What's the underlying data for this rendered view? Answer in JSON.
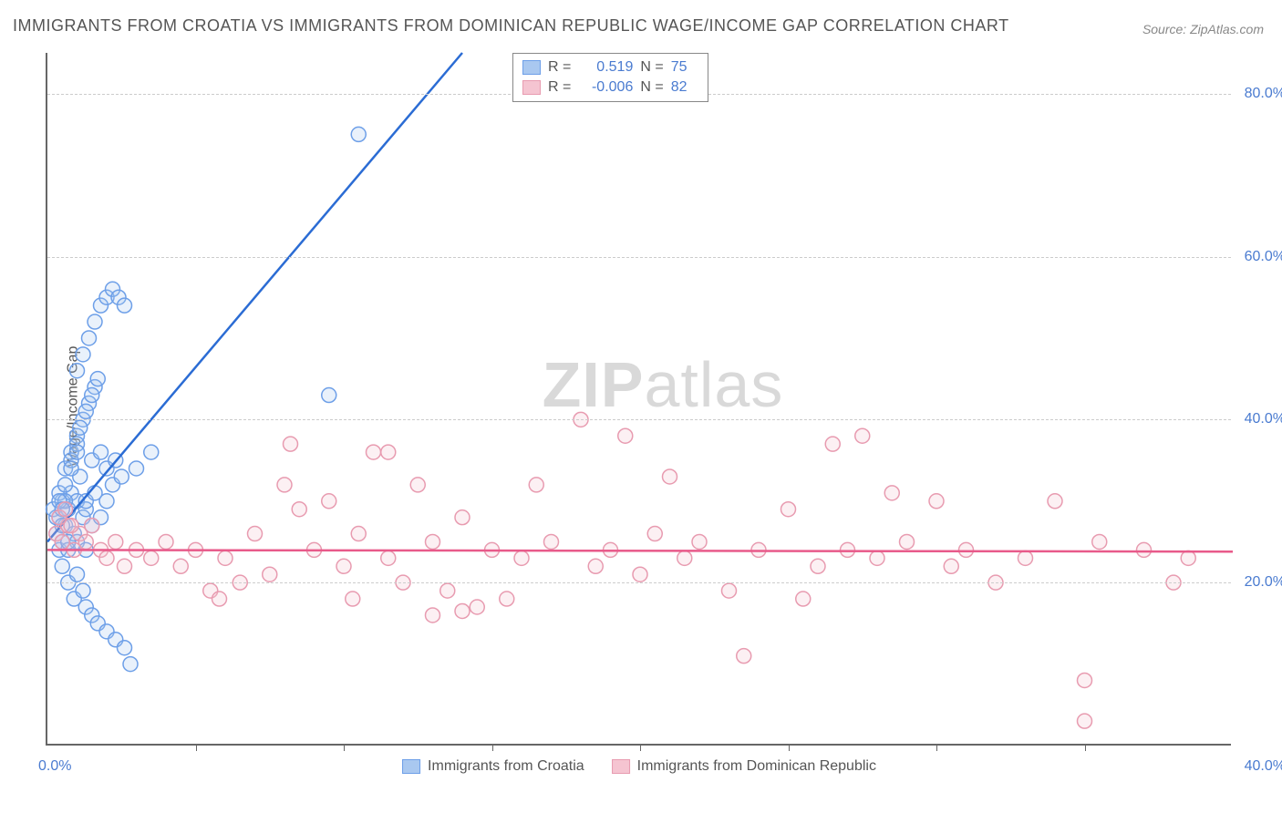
{
  "chart": {
    "type": "scatter",
    "title": "IMMIGRANTS FROM CROATIA VS IMMIGRANTS FROM DOMINICAN REPUBLIC WAGE/INCOME GAP CORRELATION CHART",
    "title_fontsize": 18,
    "title_color": "#555555",
    "source": "Source: ZipAtlas.com",
    "source_fontsize": 14,
    "source_color": "#888888",
    "ylabel": "Wage/Income Gap",
    "ylabel_fontsize": 16,
    "background_color": "#ffffff",
    "axis_color": "#666666",
    "grid_color": "#cccccc",
    "grid_dash": "4,4",
    "tick_label_color": "#4a7bd0",
    "tick_fontsize": 16,
    "xlim": [
      0,
      40
    ],
    "ylim": [
      0,
      85
    ],
    "ytick_values": [
      20,
      40,
      60,
      80
    ],
    "ytick_labels": [
      "20.0%",
      "40.0%",
      "60.0%",
      "80.0%"
    ],
    "xtick_positions": [
      5,
      10,
      15,
      20,
      25,
      30,
      35
    ],
    "xtick_label_left": "0.0%",
    "xtick_label_right": "40.0%",
    "watermark": {
      "text_bold": "ZIP",
      "text_light": "atlas",
      "color": "#bbbbbb",
      "fontsize": 70,
      "opacity": 0.55
    },
    "marker_radius": 8,
    "marker_stroke_width": 1.5,
    "marker_fill_opacity": 0.25,
    "series": [
      {
        "name": "Immigrants from Croatia",
        "color_stroke": "#6d9fe8",
        "color_fill": "#a9c8f0",
        "regression": {
          "R": "0.519",
          "N": "75",
          "line_color": "#2b6cd4",
          "line_width": 2.5,
          "x1": 0,
          "y1": 25,
          "x2": 14,
          "y2": 85
        },
        "points": [
          [
            0.3,
            28
          ],
          [
            0.5,
            30
          ],
          [
            0.6,
            27
          ],
          [
            0.7,
            29
          ],
          [
            0.8,
            31
          ],
          [
            0.9,
            26
          ],
          [
            1.0,
            30
          ],
          [
            1.1,
            33
          ],
          [
            1.2,
            28
          ],
          [
            1.3,
            29
          ],
          [
            0.4,
            24
          ],
          [
            0.5,
            22
          ],
          [
            0.7,
            20
          ],
          [
            0.9,
            18
          ],
          [
            1.0,
            21
          ],
          [
            1.2,
            19
          ],
          [
            1.3,
            17
          ],
          [
            1.5,
            16
          ],
          [
            1.7,
            15
          ],
          [
            2.0,
            14
          ],
          [
            2.3,
            13
          ],
          [
            2.6,
            12
          ],
          [
            1.0,
            25
          ],
          [
            1.3,
            24
          ],
          [
            1.5,
            27
          ],
          [
            1.8,
            28
          ],
          [
            2.0,
            30
          ],
          [
            2.2,
            32
          ],
          [
            0.8,
            36
          ],
          [
            1.0,
            38
          ],
          [
            1.2,
            40
          ],
          [
            1.4,
            42
          ],
          [
            1.6,
            44
          ],
          [
            0.6,
            34
          ],
          [
            0.8,
            35
          ],
          [
            1.0,
            37
          ],
          [
            1.1,
            39
          ],
          [
            1.3,
            41
          ],
          [
            1.5,
            43
          ],
          [
            1.7,
            45
          ],
          [
            1.0,
            46
          ],
          [
            1.2,
            48
          ],
          [
            1.4,
            50
          ],
          [
            1.6,
            52
          ],
          [
            1.8,
            54
          ],
          [
            2.0,
            55
          ],
          [
            2.2,
            56
          ],
          [
            2.4,
            55
          ],
          [
            2.6,
            54
          ],
          [
            1.5,
            35
          ],
          [
            1.8,
            36
          ],
          [
            2.0,
            34
          ],
          [
            2.3,
            35
          ],
          [
            2.5,
            33
          ],
          [
            3.0,
            34
          ],
          [
            3.5,
            36
          ],
          [
            9.5,
            43
          ],
          [
            10.5,
            75
          ],
          [
            0.2,
            29
          ],
          [
            0.4,
            31
          ],
          [
            0.6,
            30
          ],
          [
            0.3,
            26
          ],
          [
            0.5,
            25
          ],
          [
            0.7,
            24
          ],
          [
            0.4,
            28
          ],
          [
            0.6,
            32
          ],
          [
            0.8,
            34
          ],
          [
            1.0,
            36
          ],
          [
            0.5,
            27
          ],
          [
            0.7,
            25
          ],
          [
            1.3,
            30
          ],
          [
            1.6,
            31
          ],
          [
            0.4,
            30
          ],
          [
            0.5,
            29
          ],
          [
            2.8,
            10
          ]
        ]
      },
      {
        "name": "Immigrants from Dominican Republic",
        "color_stroke": "#e89bb0",
        "color_fill": "#f5c4d1",
        "regression": {
          "R": "-0.006",
          "N": "82",
          "line_color": "#e85a8a",
          "line_width": 2.5,
          "x1": 0,
          "y1": 24,
          "x2": 40,
          "y2": 23.8
        },
        "points": [
          [
            0.3,
            26
          ],
          [
            0.5,
            25
          ],
          [
            0.7,
            27
          ],
          [
            0.9,
            24
          ],
          [
            1.1,
            26
          ],
          [
            1.3,
            25
          ],
          [
            1.5,
            27
          ],
          [
            1.8,
            24
          ],
          [
            2.0,
            23
          ],
          [
            2.3,
            25
          ],
          [
            2.6,
            22
          ],
          [
            3.0,
            24
          ],
          [
            3.5,
            23
          ],
          [
            4.0,
            25
          ],
          [
            4.5,
            22
          ],
          [
            5.0,
            24
          ],
          [
            5.5,
            19
          ],
          [
            5.8,
            18
          ],
          [
            6.0,
            23
          ],
          [
            6.5,
            20
          ],
          [
            7.0,
            26
          ],
          [
            7.5,
            21
          ],
          [
            8.0,
            32
          ],
          [
            8.5,
            29
          ],
          [
            9.0,
            24
          ],
          [
            9.5,
            30
          ],
          [
            10,
            22
          ],
          [
            10.5,
            26
          ],
          [
            11,
            36
          ],
          [
            11.5,
            23
          ],
          [
            12,
            20
          ],
          [
            12.5,
            32
          ],
          [
            13,
            25
          ],
          [
            13.5,
            19
          ],
          [
            14,
            28
          ],
          [
            14.5,
            17
          ],
          [
            15,
            24
          ],
          [
            15.5,
            18
          ],
          [
            16,
            23
          ],
          [
            16.5,
            32
          ],
          [
            17,
            25
          ],
          [
            18,
            40
          ],
          [
            18.5,
            22
          ],
          [
            19,
            24
          ],
          [
            19.5,
            38
          ],
          [
            20,
            21
          ],
          [
            20.5,
            26
          ],
          [
            21,
            33
          ],
          [
            21.5,
            23
          ],
          [
            22,
            25
          ],
          [
            23,
            19
          ],
          [
            23.5,
            11
          ],
          [
            24,
            24
          ],
          [
            25,
            29
          ],
          [
            25.5,
            18
          ],
          [
            26,
            22
          ],
          [
            26.5,
            37
          ],
          [
            27,
            24
          ],
          [
            27.5,
            38
          ],
          [
            28,
            23
          ],
          [
            28.5,
            31
          ],
          [
            29,
            25
          ],
          [
            30,
            30
          ],
          [
            30.5,
            22
          ],
          [
            31,
            24
          ],
          [
            32,
            20
          ],
          [
            33,
            23
          ],
          [
            34,
            30
          ],
          [
            35,
            8
          ],
          [
            35.5,
            25
          ],
          [
            37,
            24
          ],
          [
            38,
            20
          ],
          [
            38.5,
            23
          ],
          [
            11.5,
            36
          ],
          [
            8.2,
            37
          ],
          [
            13,
            16
          ],
          [
            14,
            16.5
          ],
          [
            10.3,
            18
          ],
          [
            35,
            3
          ],
          [
            0.4,
            28
          ],
          [
            0.6,
            29
          ],
          [
            0.8,
            27
          ]
        ]
      }
    ],
    "legend_correlation": {
      "border_color": "#888888",
      "font_size": 16,
      "label_color": "#555555",
      "value_color": "#4a7bd0",
      "R_label": "R =",
      "N_label": "N ="
    },
    "legend_series": {
      "font_size": 16,
      "label_color": "#555555"
    }
  }
}
